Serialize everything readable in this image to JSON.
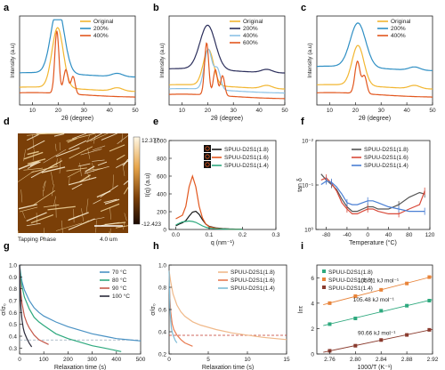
{
  "panels": {
    "a": {
      "letter": "a",
      "type": "line",
      "xlabel": "2θ (degree)",
      "ylabel": "Intensity (a.u)",
      "xlim": [
        5,
        50
      ],
      "xticks": [
        10,
        20,
        30,
        40,
        50
      ],
      "legend": [
        "Original",
        "200%",
        "400%"
      ],
      "series": [
        {
          "name": "Original",
          "color": "#f2b630",
          "peaks": [
            {
              "c": 19.8,
              "h": 0.75,
              "w": 2.2
            }
          ],
          "base": 0.12
        },
        {
          "name": "200%",
          "color": "#2f8fc4",
          "peaks": [
            {
              "c": 19.8,
              "h": 0.82,
              "w": 2.6
            }
          ],
          "base": 0.3
        },
        {
          "name": "400%",
          "color": "#e2571e",
          "peaks": [
            {
              "c": 19.5,
              "h": 0.78,
              "w": 0.8
            },
            {
              "c": 23.0,
              "h": 0.3,
              "w": 0.9
            },
            {
              "c": 25.8,
              "h": 0.22,
              "w": 0.8
            }
          ],
          "base": 0.05
        }
      ]
    },
    "b": {
      "letter": "b",
      "type": "line",
      "xlabel": "2θ (degree)",
      "ylabel": "Intensity (a.u)",
      "xlim": [
        5,
        50
      ],
      "xticks": [
        10,
        20,
        30,
        40,
        50
      ],
      "legend": [
        "Original",
        "200%",
        "400%",
        "600%"
      ],
      "series": [
        {
          "name": "Original",
          "color": "#f2b630",
          "peaks": [
            {
              "c": 20.3,
              "h": 0.45,
              "w": 2.0
            }
          ],
          "base": 0.15
        },
        {
          "name": "200%",
          "color": "#2c2f5c",
          "peaks": [
            {
              "c": 20.0,
              "h": 0.55,
              "w": 3.0
            }
          ],
          "base": 0.35
        },
        {
          "name": "400%",
          "color": "#8cc2e6",
          "peaks": [
            {
              "c": 20.2,
              "h": 0.5,
              "w": 1.5
            },
            {
              "c": 23.8,
              "h": 0.25,
              "w": 1.2
            }
          ],
          "base": 0.1
        },
        {
          "name": "600%",
          "color": "#e2571e",
          "peaks": [
            {
              "c": 19.6,
              "h": 0.65,
              "w": 0.8
            },
            {
              "c": 23.0,
              "h": 0.32,
              "w": 0.8
            },
            {
              "c": 25.8,
              "h": 0.25,
              "w": 0.8
            }
          ],
          "base": 0.03
        }
      ]
    },
    "c": {
      "letter": "c",
      "type": "line",
      "xlabel": "2θ (degree)",
      "ylabel": "Intensity (a.u)",
      "xlim": [
        5,
        50
      ],
      "xticks": [
        10,
        20,
        30,
        40,
        50
      ],
      "legend": [
        "Original",
        "200%",
        "400%"
      ],
      "series": [
        {
          "name": "Original",
          "color": "#f2b630",
          "peaks": [
            {
              "c": 21.0,
              "h": 0.5,
              "w": 2.3
            }
          ],
          "base": 0.15
        },
        {
          "name": "200%",
          "color": "#2f8fc4",
          "peaks": [
            {
              "c": 21.0,
              "h": 0.55,
              "w": 3.0
            }
          ],
          "base": 0.38
        },
        {
          "name": "400%",
          "color": "#e2571e",
          "peaks": [
            {
              "c": 20.8,
              "h": 0.4,
              "w": 1.0
            },
            {
              "c": 23.5,
              "h": 0.22,
              "w": 0.9
            }
          ],
          "base": 0.05
        }
      ]
    },
    "d": {
      "letter": "d",
      "scale_max": "12.377",
      "scale_min": "-12.423",
      "caption": "Tapping Phase",
      "scalebar": "4.0 um"
    },
    "e": {
      "letter": "e",
      "type": "line",
      "xlabel": "q (nm⁻¹)",
      "ylabel": "I(q) (a.u)",
      "xlim": [
        -0.02,
        0.3
      ],
      "ylim": [
        0,
        1000
      ],
      "xticks": [
        0.0,
        0.1,
        0.2,
        0.3
      ],
      "yticks": [
        0,
        200,
        400,
        600,
        800,
        1000
      ],
      "legend": [
        "SPUU-D2S1(1.8)",
        "SPUU-D2S1(1.6)",
        "SPUU-D2S1(1.4)"
      ],
      "series": [
        {
          "name": "SPUU-D2S1(1.8)",
          "color": "#1a1a1a",
          "x": [
            0.0,
            0.01,
            0.02,
            0.03,
            0.04,
            0.05,
            0.06,
            0.07,
            0.08,
            0.09,
            0.1,
            0.12,
            0.14,
            0.16,
            0.18,
            0.2
          ],
          "y": [
            40,
            60,
            75,
            100,
            150,
            195,
            205,
            170,
            110,
            60,
            35,
            18,
            10,
            6,
            4,
            3
          ]
        },
        {
          "name": "SPUU-D2S1(1.6)",
          "color": "#e2571e",
          "x": [
            0.0,
            0.01,
            0.02,
            0.03,
            0.04,
            0.05,
            0.06,
            0.07,
            0.08,
            0.09,
            0.1,
            0.12,
            0.14,
            0.16,
            0.18,
            0.2
          ],
          "y": [
            120,
            140,
            160,
            260,
            480,
            600,
            480,
            260,
            130,
            60,
            30,
            14,
            7,
            4,
            3,
            2
          ]
        },
        {
          "name": "SPUU-D2S1(1.4)",
          "color": "#2ea97e",
          "x": [
            0.0,
            0.01,
            0.02,
            0.03,
            0.04,
            0.05,
            0.06,
            0.07,
            0.08,
            0.09,
            0.1,
            0.12,
            0.14,
            0.16,
            0.18,
            0.2
          ],
          "y": [
            50,
            70,
            85,
            90,
            95,
            90,
            80,
            60,
            40,
            25,
            15,
            8,
            5,
            3,
            2,
            1
          ]
        }
      ]
    },
    "f": {
      "letter": "f",
      "type": "line",
      "xlabel": "Temperature (°C)",
      "ylabel": "tan δ",
      "yscale": "log",
      "xlim": [
        -100,
        120
      ],
      "ylim": [
        0.001,
        0.01
      ],
      "xticks": [
        -80,
        -40,
        0,
        40,
        80,
        120
      ],
      "yticks": [
        "10⁻²",
        "10⁻¹",
        "10⁰"
      ],
      "legend": [
        "SPUU-D2S1(1.8)",
        "SPUU-D2S1(1.6)",
        "SPUU-D2S1(1.4)"
      ],
      "series": [
        {
          "name": "SPUU-D2S1(1.8)",
          "color": "#555555",
          "x": [
            -90,
            -80,
            -70,
            -60,
            -50,
            -40,
            -30,
            -20,
            -10,
            0,
            10,
            20,
            40,
            60,
            80,
            100,
            110
          ],
          "y": [
            0.0042,
            0.0036,
            0.0032,
            0.0028,
            0.0022,
            0.0018,
            0.0016,
            0.0016,
            0.0017,
            0.0018,
            0.0018,
            0.0017,
            0.0017,
            0.0019,
            0.0023,
            0.0026,
            0.0025
          ]
        },
        {
          "name": "SPUU-D2S1(1.6)",
          "color": "#d94a3a",
          "x": [
            -90,
            -80,
            -70,
            -60,
            -50,
            -40,
            -30,
            -20,
            -10,
            0,
            10,
            20,
            40,
            60,
            80,
            100,
            110
          ],
          "y": [
            0.0036,
            0.0038,
            0.0033,
            0.0027,
            0.002,
            0.0017,
            0.0015,
            0.0015,
            0.0016,
            0.0017,
            0.0017,
            0.0016,
            0.0015,
            0.0015,
            0.0017,
            0.0019,
            0.0027
          ]
        },
        {
          "name": "SPUU-D2S1(1.4)",
          "color": "#4a7fd4",
          "x": [
            -90,
            -80,
            -70,
            -60,
            -50,
            -40,
            -30,
            -20,
            -10,
            0,
            10,
            20,
            40,
            60,
            80,
            100,
            110
          ],
          "y": [
            0.0032,
            0.0035,
            0.0034,
            0.003,
            0.0025,
            0.002,
            0.0019,
            0.0019,
            0.002,
            0.0021,
            0.0021,
            0.002,
            0.0018,
            0.0017,
            0.0016,
            0.0016,
            0.0016
          ]
        }
      ]
    },
    "g": {
      "letter": "g",
      "type": "line",
      "xlabel": "Relaxation time (s)",
      "ylabel": "σ/σ₀",
      "xlim": [
        0,
        500
      ],
      "ylim": [
        0.25,
        1.0
      ],
      "xticks": [
        0,
        100,
        200,
        300,
        400,
        500
      ],
      "yticks": [
        0.3,
        0.4,
        0.5,
        0.6,
        0.7,
        0.8,
        0.9,
        1.0
      ],
      "legend": [
        "70 °C",
        "80 °C",
        "90 °C",
        "100 °C"
      ],
      "refline": 0.368,
      "series": [
        {
          "name": "70 °C",
          "color": "#4a92c4",
          "x": [
            0,
            5,
            10,
            20,
            40,
            60,
            80,
            100,
            150,
            200,
            250,
            300,
            350,
            400,
            450,
            500
          ],
          "y": [
            1.0,
            0.92,
            0.86,
            0.79,
            0.7,
            0.64,
            0.6,
            0.57,
            0.52,
            0.48,
            0.45,
            0.42,
            0.4,
            0.38,
            0.37,
            0.36
          ]
        },
        {
          "name": "80 °C",
          "color": "#2ea97e",
          "x": [
            0,
            5,
            10,
            20,
            40,
            60,
            80,
            100,
            150,
            200,
            250,
            300,
            350,
            420
          ],
          "y": [
            1.0,
            0.89,
            0.82,
            0.73,
            0.63,
            0.56,
            0.52,
            0.49,
            0.42,
            0.38,
            0.35,
            0.32,
            0.3,
            0.27
          ]
        },
        {
          "name": "90 °C",
          "color": "#c4584a",
          "x": [
            0,
            3,
            6,
            10,
            20,
            30,
            40,
            60,
            80,
            100,
            120
          ],
          "y": [
            1.0,
            0.85,
            0.76,
            0.68,
            0.57,
            0.51,
            0.47,
            0.41,
            0.37,
            0.35,
            0.33
          ]
        },
        {
          "name": "100 °C",
          "color": "#2a2a3a",
          "x": [
            0,
            2,
            4,
            6,
            10,
            15,
            20,
            30,
            40,
            50
          ],
          "y": [
            1.0,
            0.8,
            0.7,
            0.63,
            0.54,
            0.47,
            0.43,
            0.38,
            0.34,
            0.31
          ]
        }
      ]
    },
    "h": {
      "letter": "h",
      "type": "line",
      "xlabel": "Relaxation time (s)",
      "ylabel": "σ/σ₀",
      "xlim": [
        0,
        15
      ],
      "ylim": [
        0.2,
        1.0
      ],
      "xticks": [
        0,
        5,
        10,
        15
      ],
      "yticks": [
        0.2,
        0.4,
        0.6,
        0.8,
        1.0
      ],
      "legend": [
        "SPUU-D2S1(1.8)",
        "SPUU-D2S1(1.6)",
        "SPUU-D2S1(1.4)"
      ],
      "refline": 0.368,
      "series": [
        {
          "name": "SPUU-D2S1(1.8)",
          "color": "#f0b98a",
          "x": [
            0,
            0.2,
            0.5,
            1,
            1.5,
            2,
            3,
            4,
            5,
            6,
            8,
            10,
            12,
            15
          ],
          "y": [
            0.95,
            0.85,
            0.74,
            0.64,
            0.58,
            0.54,
            0.49,
            0.46,
            0.44,
            0.42,
            0.39,
            0.37,
            0.35,
            0.33
          ]
        },
        {
          "name": "SPUU-D2S1(1.6)",
          "color": "#e87a50",
          "x": [
            0,
            0.1,
            0.2,
            0.4,
            0.6,
            1,
            1.5,
            2,
            3
          ],
          "y": [
            0.95,
            0.7,
            0.58,
            0.47,
            0.42,
            0.37,
            0.33,
            0.3,
            0.27
          ]
        },
        {
          "name": "SPUU-D2S1(1.4)",
          "color": "#7fbcd6",
          "x": [
            0,
            0.1,
            0.2,
            0.3,
            0.5,
            0.8,
            1.0
          ],
          "y": [
            0.95,
            0.62,
            0.5,
            0.43,
            0.37,
            0.32,
            0.3
          ]
        }
      ]
    },
    "i": {
      "letter": "i",
      "type": "scatter",
      "xlabel": "1000/T (K⁻¹)",
      "ylabel": "lnτ",
      "xlim": [
        2.74,
        2.92
      ],
      "ylim": [
        0,
        7
      ],
      "xticks": [
        2.76,
        2.8,
        2.84,
        2.88,
        2.92
      ],
      "yticks": [
        0,
        2,
        4,
        6
      ],
      "legend": [
        "SPUU-D2S1(1.8)",
        "SPUU-D2S1(1.6)",
        "SPUU-D2S1(1.4)"
      ],
      "annotations": [
        "105.71 kJ mol⁻¹",
        "105.48 kJ mol⁻¹",
        "90.66 kJ mol⁻¹"
      ],
      "series": [
        {
          "name": "SPUU-D2S1(1.8)",
          "color": "#2ea97e",
          "x": [
            2.76,
            2.8,
            2.84,
            2.88,
            2.915
          ],
          "y": [
            2.35,
            2.8,
            3.4,
            3.8,
            4.2
          ]
        },
        {
          "name": "SPUU-D2S1(1.6)",
          "color": "#e8843a",
          "x": [
            2.76,
            2.8,
            2.84,
            2.88,
            2.915
          ],
          "y": [
            4.0,
            4.55,
            5.05,
            5.55,
            6.05
          ]
        },
        {
          "name": "SPUU-D2S1(1.4)",
          "color": "#8a3b2e",
          "x": [
            2.76,
            2.8,
            2.84,
            2.88,
            2.915
          ],
          "y": [
            0.25,
            0.65,
            1.1,
            1.5,
            1.9
          ]
        }
      ]
    }
  }
}
